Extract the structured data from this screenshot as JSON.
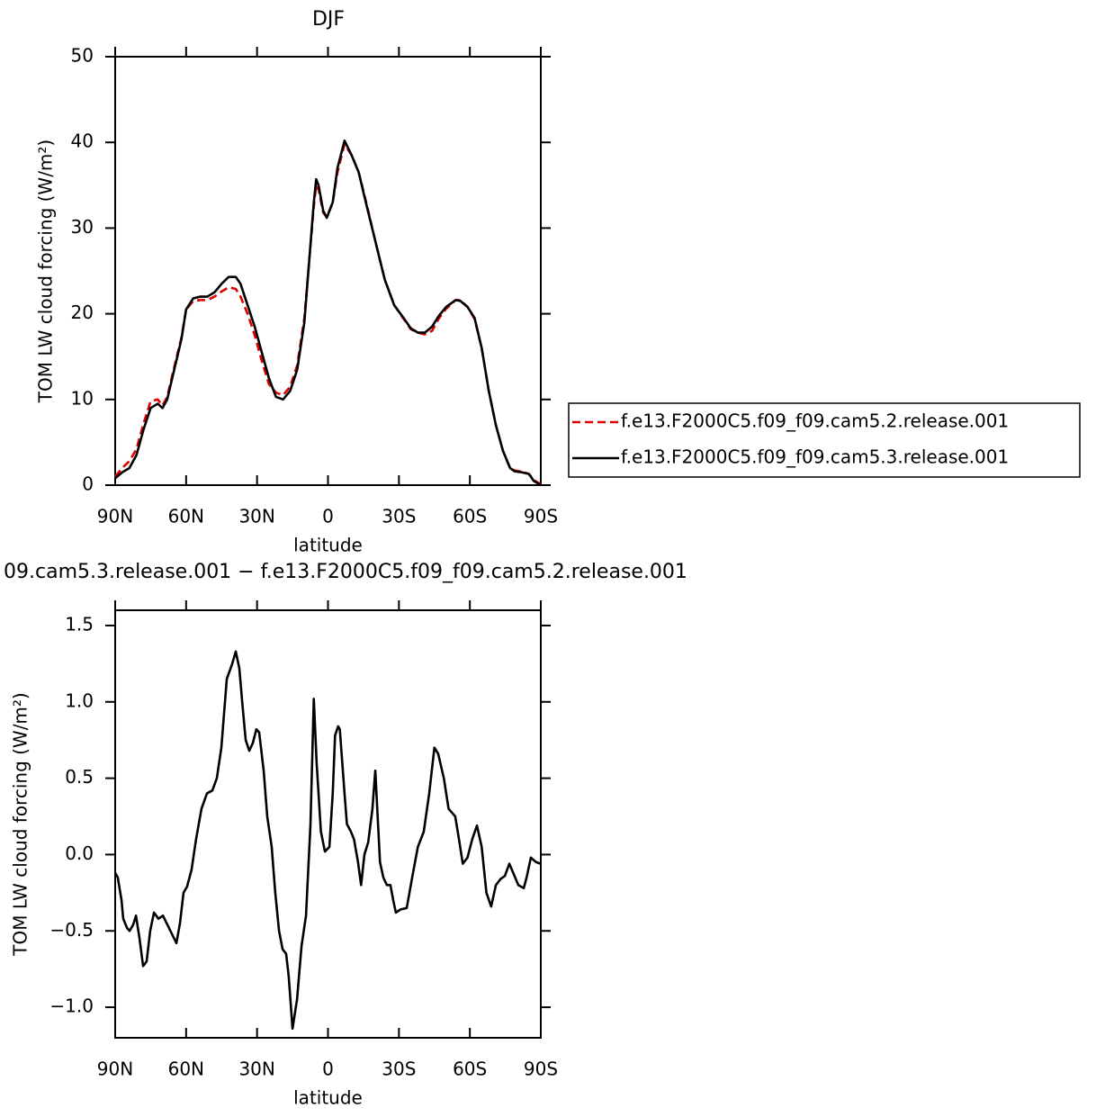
{
  "chart_data": [
    {
      "type": "line",
      "title": "DJF",
      "x_label": "latitude",
      "y_label": "TOM LW cloud forcing (W/m²)",
      "xlim": [
        90,
        -90
      ],
      "xticks": [
        {
          "value": 90,
          "label": "90N"
        },
        {
          "value": 60,
          "label": "60N"
        },
        {
          "value": 30,
          "label": "30N"
        },
        0,
        {
          "value": -30,
          "label": "30S"
        },
        {
          "value": -60,
          "label": "60S"
        },
        {
          "value": -90,
          "label": "90S"
        }
      ],
      "ylim": [
        0,
        50
      ],
      "yticks": [
        0,
        10,
        20,
        30,
        40,
        50
      ],
      "legend": "right",
      "x": [
        90,
        87,
        84,
        81,
        78,
        75,
        72,
        70,
        68,
        65,
        62,
        60,
        57,
        54,
        51,
        48,
        45,
        42,
        39,
        37,
        34,
        31,
        28,
        25,
        22,
        19,
        16,
        13,
        10,
        8,
        6,
        5,
        4,
        2,
        0.5,
        -2,
        -4,
        -7,
        -10,
        -13,
        -16,
        -20,
        -24,
        -28,
        -32,
        -35,
        -38,
        -41,
        -44,
        -47,
        -50,
        -54,
        -56,
        -59,
        -62,
        -65,
        -68,
        -71,
        -74,
        -77,
        -79,
        -82,
        -85,
        -87,
        -90
      ],
      "series": [
        {
          "name": "f.e13.F2000C5.f09_f09.cam5.2.release.001",
          "color": "#e00000",
          "dash": true,
          "values": [
            1.0,
            2.0,
            2.8,
            4.2,
            7.2,
            9.8,
            10.0,
            9.3,
            10.3,
            13.8,
            17.2,
            20.5,
            21.5,
            21.6,
            21.6,
            22.0,
            22.6,
            23.1,
            22.9,
            22.0,
            20,
            17.5,
            14.5,
            11.8,
            10.8,
            10.5,
            11.5,
            14,
            19.5,
            26,
            32.5,
            35.0,
            34.5,
            31.8,
            31.3,
            33,
            36.5,
            39.8,
            38.5,
            36.5,
            33.2,
            28.5,
            24,
            21,
            19.4,
            18.2,
            17.8,
            17.6,
            18.0,
            19.5,
            20.6,
            21.6,
            21.6,
            20.8,
            19.4,
            16,
            11,
            7,
            4,
            2,
            1.7,
            1.6,
            1.3,
            0.6,
            0.1
          ]
        },
        {
          "name": "f.e13.F2000C5.f09_f09.cam5.3.release.001",
          "color": "#000000",
          "dash": false,
          "values": [
            0.8,
            1.5,
            2.0,
            3.5,
            6.5,
            9.0,
            9.5,
            9.0,
            10.0,
            13.5,
            17,
            20.5,
            21.8,
            22.0,
            22.0,
            22.5,
            23.5,
            24.3,
            24.3,
            23.5,
            21,
            18.5,
            15.5,
            12.5,
            10.3,
            10.0,
            11,
            13.5,
            19,
            26,
            33,
            35.7,
            35,
            32,
            31.2,
            33,
            37,
            40.2,
            38.5,
            36.5,
            33,
            28.5,
            24,
            21,
            19.5,
            18.3,
            17.8,
            17.8,
            18.5,
            19.8,
            20.8,
            21.6,
            21.5,
            20.8,
            19.5,
            16,
            11,
            7,
            4,
            2,
            1.6,
            1.5,
            1.3,
            0.5,
            0
          ]
        }
      ]
    },
    {
      "type": "line",
      "title": "09.cam5.3.release.001 − f.e13.F2000C5.f09_f09.cam5.2.release.001",
      "x_label": "latitude",
      "y_label": "TOM LW cloud forcing (W/m²)",
      "xlim": [
        90,
        -90
      ],
      "xticks": [
        {
          "value": 90,
          "label": "90N"
        },
        {
          "value": 60,
          "label": "60N"
        },
        {
          "value": 30,
          "label": "30N"
        },
        0,
        {
          "value": -30,
          "label": "30S"
        },
        {
          "value": -60,
          "label": "60S"
        },
        {
          "value": -90,
          "label": "90S"
        }
      ],
      "ylim": [
        -1.2,
        1.6
      ],
      "yticks": [
        {
          "value": -1,
          "label": "−1.0"
        },
        {
          "value": -0.5,
          "label": "−0.5"
        },
        {
          "value": 0,
          "label": "0.0"
        },
        0.5,
        {
          "value": 1,
          "label": "1.0"
        },
        1.5
      ],
      "x": [
        90,
        88.9,
        87.3,
        86.6,
        85,
        83.9,
        82.4,
        81.2,
        79.7,
        78.2,
        76.7,
        75.2,
        73.6,
        71.7,
        69.8,
        67.9,
        66,
        64.1,
        62.6,
        61.1,
        59.6,
        57.7,
        55.8,
        53.5,
        51.2,
        48.9,
        47,
        45.1,
        42.8,
        40.5,
        39,
        37.5,
        36,
        34.8,
        33.3,
        31.8,
        30.3,
        29.1,
        27.2,
        25.7,
        23.8,
        22.3,
        20.7,
        19.2,
        17.7,
        16.6,
        15,
        13.1,
        11.2,
        9.3,
        7.4,
        6,
        4.8,
        3,
        1.3,
        -0.6,
        -2,
        -3,
        -4.3,
        -5,
        -7,
        -8,
        -9.7,
        -11,
        -12.7,
        -14,
        -15.4,
        -17,
        -18.8,
        -20,
        -22,
        -23.4,
        -24.9,
        -26.4,
        -27.6,
        -28.7,
        -30.6,
        -33.3,
        -35.6,
        -38,
        -40.5,
        -42.8,
        -45,
        -46.6,
        -49,
        -51,
        -53.8,
        -55.4,
        -57,
        -59,
        -61,
        -63,
        -65,
        -67,
        -69,
        -71,
        -73,
        -74.8,
        -76.7,
        -78.6,
        -80.5,
        -82.8,
        -84,
        -85.8,
        -88,
        -90
      ],
      "color": "#000000",
      "values": [
        -0.12,
        -0.15,
        -0.3,
        -0.42,
        -0.48,
        -0.5,
        -0.46,
        -0.4,
        -0.55,
        -0.73,
        -0.7,
        -0.5,
        -0.38,
        -0.42,
        -0.4,
        -0.46,
        -0.52,
        -0.58,
        -0.45,
        -0.25,
        -0.21,
        -0.1,
        0.1,
        0.3,
        0.4,
        0.42,
        0.5,
        0.7,
        1.15,
        1.25,
        1.33,
        1.22,
        0.95,
        0.75,
        0.68,
        0.73,
        0.82,
        0.8,
        0.55,
        0.25,
        0.05,
        -0.25,
        -0.5,
        -0.62,
        -0.65,
        -0.8,
        -1.14,
        -0.95,
        -0.6,
        -0.4,
        0.2,
        1.02,
        0.6,
        0.15,
        0.02,
        0.05,
        0.4,
        0.78,
        0.84,
        0.82,
        0.4,
        0.2,
        0.15,
        0.1,
        -0.05,
        -0.2,
        0,
        0.08,
        0.3,
        0.55,
        -0.05,
        -0.15,
        -0.2,
        -0.2,
        -0.3,
        -0.38,
        -0.36,
        -0.35,
        -0.15,
        0.05,
        0.15,
        0.4,
        0.7,
        0.66,
        0.5,
        0.3,
        0.25,
        0.1,
        -0.06,
        -0.02,
        0.1,
        0.19,
        0.05,
        -0.25,
        -0.34,
        -0.2,
        -0.16,
        -0.14,
        -0.06,
        -0.13,
        -0.2,
        -0.22,
        -0.15,
        -0.02,
        -0.05,
        -0.06
      ]
    }
  ]
}
